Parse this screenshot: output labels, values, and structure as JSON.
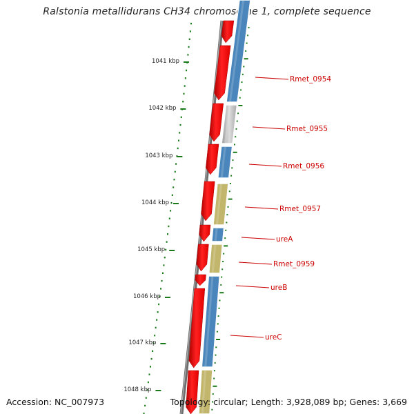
{
  "title": "Ralstonia metallidurans CH34 chromosome 1, complete sequence",
  "footer": {
    "accession": "Accession: NC_007973",
    "summary": "Topology: circular; Length: 3,928,089 bp; Genes: 3,669"
  },
  "colors": {
    "forward_gene": "#ff1a1a",
    "cds_blue": "#4a86bb",
    "cds_grey": "#c4c4c4",
    "cds_khaki": "#c2b56c",
    "backbone": "#7a7a7a",
    "ruler": "#1a7a1a",
    "label": "#cc0000"
  },
  "ruler_labels": [
    "1041 kbp",
    "1042 kbp",
    "1043 kbp",
    "1044 kbp",
    "1045 kbp",
    "1046 kbp",
    "1047 kbp",
    "1048 kbp"
  ],
  "gene_labels": [
    "Rmet_0954",
    "Rmet_0955",
    "Rmet_0956",
    "Rmet_0957",
    "ureA",
    "Rmet_0959",
    "ureB",
    "ureC"
  ]
}
